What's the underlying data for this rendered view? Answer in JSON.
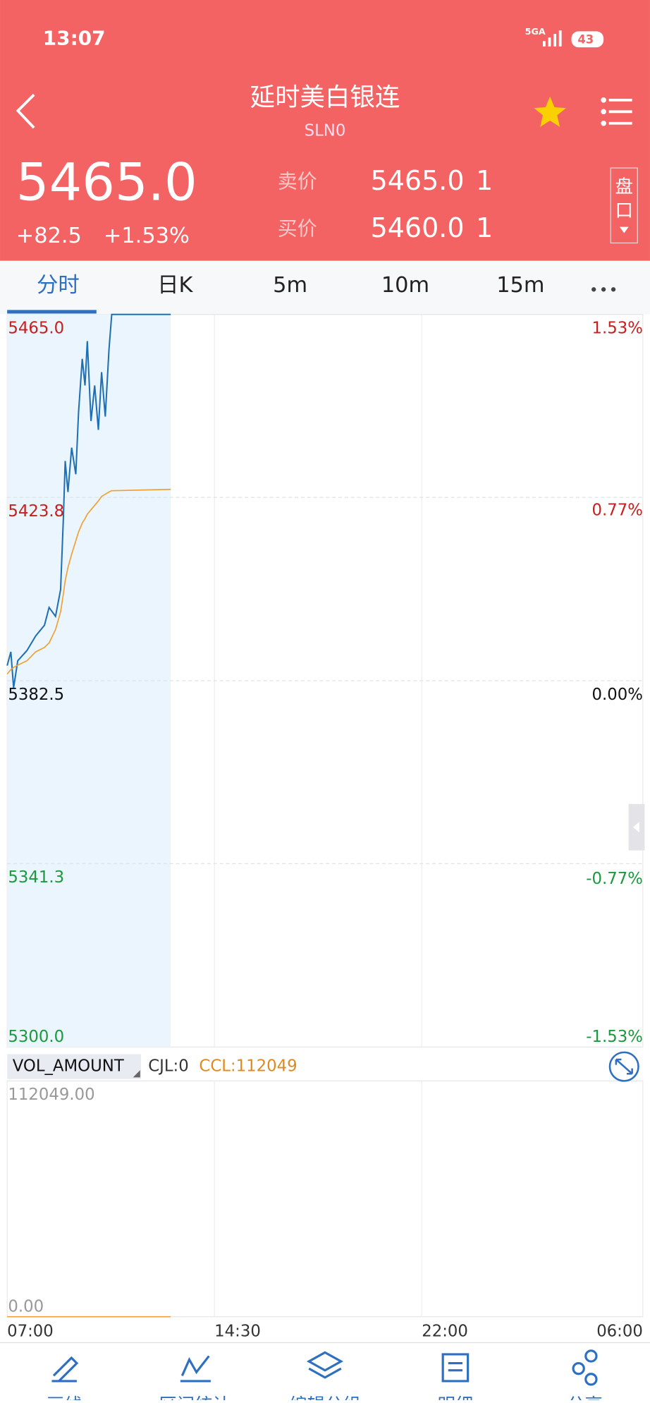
{
  "status_bar": {
    "time": "13:07",
    "network": "5GA",
    "battery": "43"
  },
  "header": {
    "title": "延时美白银连",
    "code": "SLN0"
  },
  "quote": {
    "price": "5465.0",
    "change": "+82.5",
    "change_pct": "+1.53%",
    "ask_label": "卖价",
    "ask_price": "5465.0",
    "ask_qty": "1",
    "bid_label": "买价",
    "bid_price": "5460.0",
    "bid_qty": "1",
    "book_button": [
      "盘",
      "口"
    ]
  },
  "tabs": [
    "分时",
    "日K",
    "5m",
    "10m",
    "15m"
  ],
  "indicator": {
    "name": "VOL_AMOUNT",
    "cjl": "CJL:0",
    "ccl": "CCL:112049"
  },
  "bottom_nav": [
    "画线",
    "区间统计",
    "编辑分组",
    "明细",
    "分享"
  ],
  "chart_data": [
    {
      "type": "line",
      "x": [
        "07:00",
        "07:08",
        "07:14",
        "07:23",
        "07:43",
        "08:02",
        "08:21",
        "08:31",
        "08:45",
        "08:56",
        "09:02",
        "09:06",
        "09:12",
        "09:20",
        "09:29",
        "09:35",
        "09:43",
        "09:49",
        "09:54",
        "10:02",
        "10:10",
        "10:18",
        "10:25",
        "10:33",
        "10:41",
        "10:47",
        "12:55"
      ],
      "series": [
        {
          "color": "#1f6fb5",
          "values": [
            5385.9,
            5389,
            5380.9,
            5387,
            5389.3,
            5392.6,
            5395,
            5399,
            5397,
            5403,
            5419,
            5432,
            5425,
            5435,
            5429,
            5443,
            5455,
            5449,
            5459,
            5441,
            5449,
            5439,
            5452,
            5442,
            5457,
            5465,
            5465
          ]
        },
        {
          "color": "#f0a030",
          "values": [
            5384,
            5385,
            5385.5,
            5386,
            5387,
            5389,
            5390,
            5391,
            5394,
            5398,
            5402,
            5405,
            5408,
            5411,
            5414,
            5416,
            5418,
            5419,
            5420,
            5421,
            5422,
            5423,
            5424,
            5424.5,
            5425,
            5425.3,
            5425.6
          ]
        }
      ],
      "xlim": [
        "07:00",
        "06:00"
      ],
      "xticks": [
        "07:00",
        "14:30",
        "22:00",
        "06:00"
      ],
      "ylim": [
        5300,
        5465
      ],
      "yticks": [
        {
          "value": 5300,
          "label": "5300.0"
        },
        5341.3,
        5382.5,
        5423.8,
        {
          "value": 5465,
          "label": "5465.0"
        }
      ],
      "y2lim": [
        -1.53,
        1.53
      ],
      "y2ticks": [
        {
          "value": -1.53,
          "label": "-1.53%"
        },
        {
          "value": -0.77,
          "label": "-0.77%"
        },
        {
          "value": 0,
          "label": "0.00%"
        },
        {
          "value": 0.77,
          "label": "0.77%"
        },
        {
          "value": 1.53,
          "label": "1.53%"
        }
      ],
      "grid": true,
      "shade_color": "#eaf5fd"
    },
    {
      "type": "line",
      "x": [
        "07:00",
        "12:55"
      ],
      "series": [
        {
          "color": "#f0a030",
          "values": [
            0,
            0
          ]
        }
      ],
      "xlim": [
        "07:00",
        "06:00"
      ],
      "ylim": [
        0,
        112049
      ],
      "yticks": [
        {
          "value": 0,
          "label": "0.00"
        },
        {
          "value": 112049,
          "label": "112049.00"
        }
      ]
    }
  ]
}
